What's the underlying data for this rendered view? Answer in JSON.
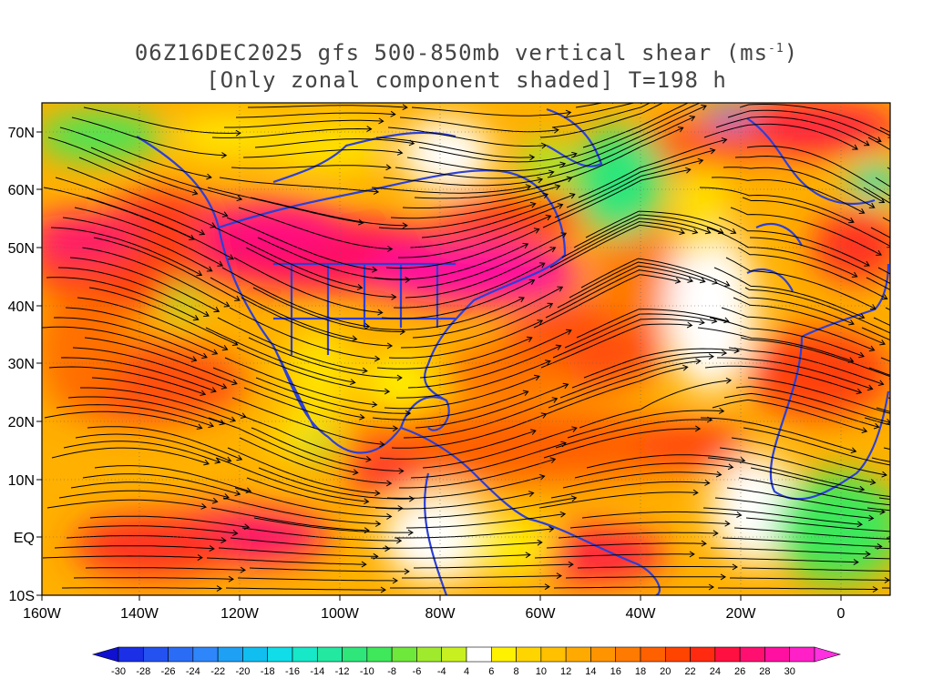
{
  "title_line1": "06Z16DEC2025 gfs 500-850mb vertical shear (ms",
  "title_line1_sup": "-1",
  "title_line1_end": ")",
  "title_line2": "[Only zonal component shaded] T=198 h",
  "lat_labels": [
    "70N",
    "60N",
    "50N",
    "40N",
    "30N",
    "20N",
    "10N",
    "EQ",
    "10S"
  ],
  "lon_labels": [
    "160W",
    "140W",
    "120W",
    "100W",
    "80W",
    "60W",
    "40W",
    "20W",
    "0"
  ],
  "colorbar_labels": [
    "-30",
    "-28",
    "-26",
    "-24",
    "-22",
    "-20",
    "-18",
    "-16",
    "-14",
    "-12",
    "-10",
    "-8",
    "-6",
    "-4",
    "4",
    "6",
    "8",
    "10",
    "12",
    "14",
    "16",
    "18",
    "20",
    "22",
    "24",
    "26",
    "28",
    "30"
  ],
  "colorbar_colors": [
    "#1a2fe6",
    "#2352f0",
    "#2a6cf5",
    "#2e86fa",
    "#1ea0f5",
    "#10bff0",
    "#10dde8",
    "#16e8c8",
    "#22e8a0",
    "#2ee67a",
    "#3ee85a",
    "#6ee83a",
    "#a0ea2e",
    "#c8f020",
    "#ffffff",
    "#fff200",
    "#ffd500",
    "#ffc000",
    "#ffaa00",
    "#ff9400",
    "#ff7a00",
    "#ff6000",
    "#ff4400",
    "#ff2a10",
    "#ff1040",
    "#ff1070",
    "#ff10a0",
    "#ff20c8"
  ],
  "colorbar_end_colors": [
    "#1010d0",
    "#ff30e0"
  ]
}
